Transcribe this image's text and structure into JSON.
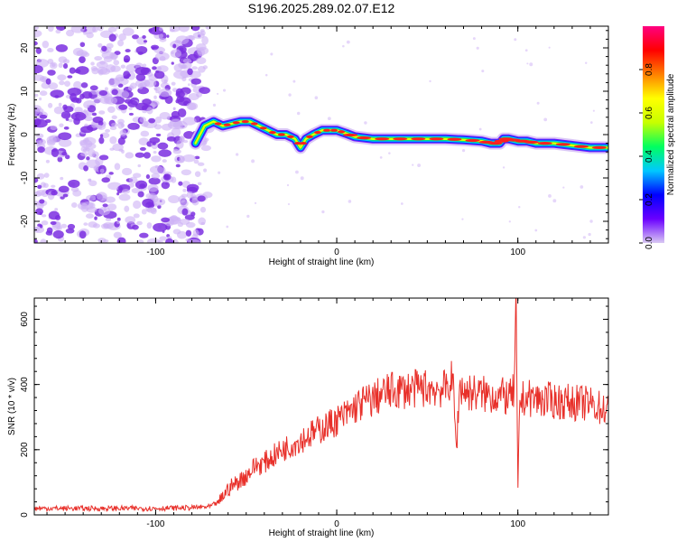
{
  "figure_title": "S196.2025.289.02.07.E12",
  "colors": {
    "snr_line": "#e8302a",
    "scatter_purple": "#7b2fe0",
    "scatter_light": "#cdb0f5",
    "axis": "#000000"
  },
  "chart_data": [
    {
      "type": "heatmap",
      "title": "S196.2025.289.02.07.E12",
      "xlabel": "Height of straight line (km)",
      "ylabel": "Frequency (Hz)",
      "xlim": [
        -167,
        150
      ],
      "ylim": [
        -25,
        25
      ],
      "xticks": [
        -100,
        0,
        100
      ],
      "yticks": [
        -20,
        -10,
        0,
        10,
        20
      ],
      "noise_region_x": [
        -167,
        -75
      ],
      "ridge": {
        "x": [
          -78,
          -73,
          -68,
          -63,
          -58,
          -53,
          -48,
          -43,
          -38,
          -33,
          -28,
          -23,
          -20,
          -17,
          -13,
          -8,
          -3,
          0,
          5,
          10,
          20,
          30,
          40,
          50,
          60,
          70,
          80,
          85,
          90,
          92,
          95,
          100,
          105,
          110,
          120,
          130,
          140,
          150
        ],
        "freq": [
          -2,
          2,
          3,
          2,
          2.5,
          3,
          3,
          2,
          1,
          0,
          0,
          -1,
          -3,
          -1,
          0,
          1,
          1,
          1,
          0.3,
          -0.5,
          -1,
          -1,
          -1,
          -1,
          -1,
          -1.2,
          -1.5,
          -2,
          -2,
          -1,
          -1,
          -1.5,
          -1.5,
          -2,
          -2,
          -2.5,
          -3,
          -3
        ]
      },
      "colorbar": {
        "label": "Normalized spectral amplitude",
        "range": [
          0.0,
          1.0
        ],
        "ticks": [
          "0.0",
          "0.2",
          "0.4",
          "0.6",
          "0.8"
        ],
        "colormap": [
          "#d9c9f3",
          "#6a00ff",
          "#0000ff",
          "#00c8ff",
          "#00ff60",
          "#c8ff00",
          "#ffff00",
          "#ff8000",
          "#ff0000",
          "#ff0080"
        ]
      }
    },
    {
      "type": "line",
      "xlabel": "Height of straight line (km)",
      "ylabel": "SNR (10 * v/v)",
      "xlim": [
        -167,
        150
      ],
      "ylim": [
        0,
        665
      ],
      "xticks": [
        -100,
        0,
        100
      ],
      "yticks": [
        0,
        200,
        400,
        600
      ],
      "series": [
        {
          "name": "SNR",
          "x": [
            -167,
            -140,
            -120,
            -100,
            -80,
            -70,
            -65,
            -60,
            -55,
            -50,
            -45,
            -40,
            -35,
            -30,
            -25,
            -20,
            -15,
            -10,
            -5,
            0,
            5,
            10,
            15,
            20,
            25,
            30,
            40,
            50,
            60,
            64,
            66,
            68,
            70,
            80,
            90,
            96,
            98,
            99,
            100,
            101,
            102,
            104,
            110,
            120,
            130,
            140,
            150
          ],
          "y": [
            20,
            20,
            20,
            20,
            22,
            25,
            40,
            80,
            100,
            120,
            150,
            160,
            180,
            200,
            215,
            230,
            245,
            260,
            275,
            290,
            305,
            330,
            345,
            355,
            370,
            380,
            385,
            390,
            385,
            420,
            200,
            400,
            380,
            370,
            365,
            360,
            380,
            660,
            50,
            360,
            350,
            360,
            355,
            350,
            345,
            340,
            320
          ]
        }
      ]
    }
  ]
}
